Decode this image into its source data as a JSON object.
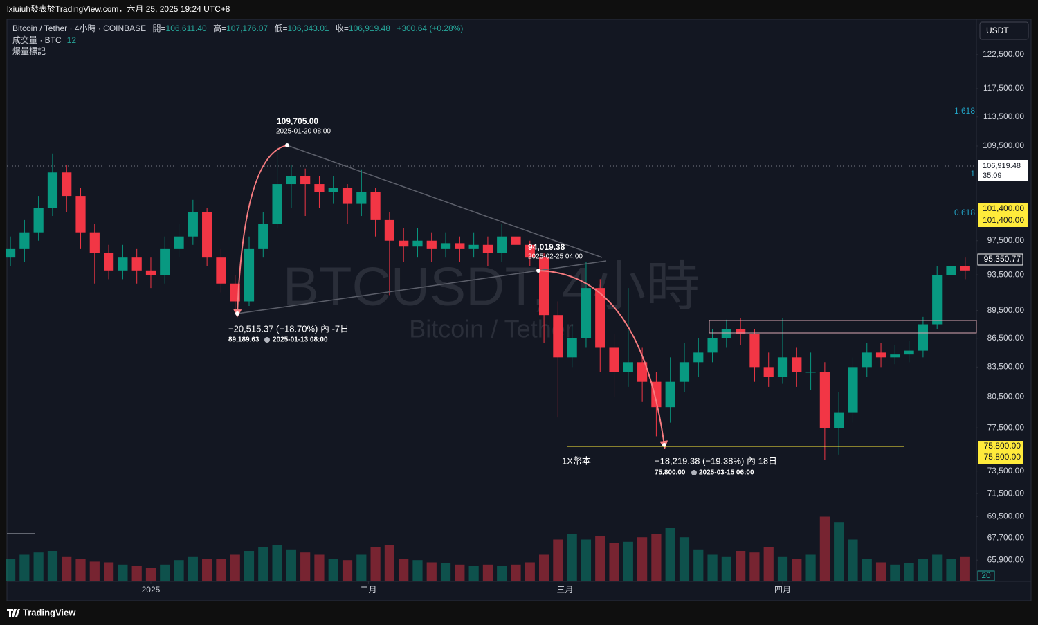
{
  "header": {
    "title": "lxiuiuh發表於TradingView.com，六月 25, 2025 19:24 UTC+8",
    "footer": "TradingView",
    "currency_button": "USDT"
  },
  "legend": {
    "symbol": "Bitcoin / Tether · 4小時 · COINBASE",
    "open_key": "開=",
    "open": "106,611.40",
    "high_key": "高=",
    "high": "107,176.07",
    "low_key": "低=",
    "low": "106,343.01",
    "close_key": "收=",
    "close": "106,919.48",
    "change": "+300.64 (+0.28%)",
    "volume_name": "成交量 · BTC",
    "volume_value": "12",
    "indicator": "爆量標記"
  },
  "watermark": {
    "symbol": "BTCUSDT, 4小時",
    "name": "Bitcoin / Tether"
  },
  "fib_levels": [
    "1.618",
    "1",
    "0.618"
  ],
  "price_labels": {
    "last": "106,919.48",
    "countdown": "35:09",
    "level_a": "101,400.00",
    "level_b": "101,400.00",
    "cursor": "95,350.77",
    "level_c": "75,800.00",
    "level_d": "75,800.00",
    "volume": "20"
  },
  "annotations": {
    "peak_price": "109,705.00",
    "peak_date": "2025-01-20 08:00",
    "mid_price": "94,019.38",
    "mid_date": "2025-02-25 04:00",
    "drop1": "−20,515.37 (−18.70%) 內 -7日",
    "drop1_price": "89,189.63",
    "drop1_date": "2025-01-13  08:00",
    "line_label": "1X幣本",
    "drop2": "−18,219.38 (−19.38%) 內 18日",
    "drop2_price": "75,800.00",
    "drop2_date": "2025-03-15  06:00"
  },
  "chart_data": {
    "type": "candlestick",
    "log_scale": true,
    "grid": false,
    "up_color": "#089981",
    "down_color": "#f23645",
    "xlim": [
      -20.5,
      117.5
    ],
    "xticks": [
      {
        "value": 0,
        "label": "2025"
      },
      {
        "value": 31,
        "label": "二月"
      },
      {
        "value": 59,
        "label": "三月"
      },
      {
        "value": 90,
        "label": "四月"
      }
    ],
    "ylim": [
      64200,
      127900
    ],
    "yticks": [
      {
        "value": 122500,
        "label": "122,500.00"
      },
      {
        "value": 117500,
        "label": "117,500.00"
      },
      {
        "value": 113500,
        "label": "113,500.00"
      },
      {
        "value": 109500,
        "label": "109,500.00"
      },
      {
        "value": 97500,
        "label": "97,500.00"
      },
      {
        "value": 93500,
        "label": "93,500.00"
      },
      {
        "value": 89500,
        "label": "89,500.00"
      },
      {
        "value": 86500,
        "label": "86,500.00"
      },
      {
        "value": 83500,
        "label": "83,500.00"
      },
      {
        "value": 80500,
        "label": "80,500.00"
      },
      {
        "value": 77500,
        "label": "77,500.00"
      },
      {
        "value": 73500,
        "label": "73,500.00"
      },
      {
        "value": 71500,
        "label": "71,500.00"
      },
      {
        "value": 69500,
        "label": "69,500.00"
      },
      {
        "value": 67700,
        "label": "67,700.00"
      },
      {
        "value": 65900,
        "label": "65,900.00"
      }
    ],
    "vlim": [
      0,
      100
    ],
    "x": [
      -20,
      -18,
      -16,
      -14,
      -12,
      -10,
      -8,
      -6,
      -4,
      -2,
      0,
      2,
      4,
      6,
      8,
      10,
      12,
      14,
      16,
      18,
      20,
      22,
      24,
      26,
      28,
      30,
      32,
      34,
      36,
      38,
      40,
      42,
      44,
      46,
      48,
      50,
      52,
      54,
      56,
      58,
      60,
      62,
      64,
      66,
      68,
      70,
      72,
      74,
      76,
      78,
      80,
      82,
      84,
      86,
      88,
      90,
      92,
      94,
      96,
      98,
      100,
      102,
      104,
      106,
      108,
      110,
      112,
      114,
      116
    ],
    "open": [
      95500,
      96500,
      98500,
      101500,
      106000,
      103000,
      98500,
      96000,
      94000,
      95500,
      94000,
      93500,
      96500,
      98000,
      101000,
      95500,
      92500,
      90500,
      96500,
      99500,
      104500,
      105500,
      104500,
      103500,
      104000,
      102000,
      103500,
      100000,
      97500,
      96800,
      97500,
      96500,
      97200,
      96500,
      97000,
      96000,
      98000,
      97000,
      95500,
      89000,
      84500,
      86500,
      92000,
      85500,
      83000,
      84000,
      82000,
      79500,
      82000,
      84000,
      85000,
      86500,
      87500,
      87000,
      83500,
      82500,
      84500,
      83000,
      83000,
      77500,
      79000,
      83500,
      85000,
      84500,
      84800,
      85200,
      88000,
      93500,
      94500
    ],
    "high": [
      98000,
      100000,
      103000,
      108500,
      107000,
      104000,
      99500,
      97000,
      97000,
      96500,
      95500,
      98000,
      99500,
      102500,
      101500,
      96500,
      93500,
      98000,
      101000,
      109705,
      107000,
      106500,
      105500,
      105500,
      104500,
      106400,
      104000,
      101000,
      99000,
      99000,
      98500,
      98500,
      98000,
      98500,
      98000,
      99500,
      100500,
      97500,
      96000,
      90500,
      88000,
      95000,
      93000,
      87000,
      92000,
      85500,
      83000,
      84500,
      86000,
      86500,
      87500,
      88500,
      88700,
      87500,
      85000,
      88700,
      85500,
      85000,
      84000,
      81000,
      84500,
      86000,
      86000,
      85800,
      86200,
      88800,
      94500,
      95800,
      95500
    ],
    "low": [
      94500,
      95000,
      97500,
      100500,
      101000,
      96500,
      92500,
      93000,
      93000,
      92500,
      92000,
      92500,
      95500,
      97000,
      94500,
      91500,
      89189.63,
      90000,
      95500,
      99000,
      101500,
      100500,
      101500,
      102000,
      99500,
      100500,
      98000,
      91200,
      95000,
      95500,
      95000,
      95500,
      95000,
      95500,
      94500,
      95000,
      96000,
      94500,
      86000,
      78500,
      83500,
      85500,
      83000,
      80500,
      81500,
      80000,
      76700,
      78000,
      81000,
      82500,
      84000,
      85500,
      85800,
      82000,
      81500,
      81800,
      81500,
      81200,
      74500,
      75000,
      78000,
      82500,
      83500,
      83800,
      84000,
      84500,
      87500,
      92500,
      93000
    ],
    "close": [
      96500,
      98500,
      101500,
      106000,
      103000,
      98500,
      96000,
      94000,
      95500,
      94000,
      93500,
      96500,
      98000,
      101000,
      95500,
      92500,
      90500,
      96500,
      99500,
      104500,
      105500,
      104500,
      103500,
      104000,
      102000,
      103500,
      100000,
      97500,
      96800,
      97500,
      96500,
      97200,
      96500,
      97000,
      96000,
      98000,
      97000,
      95500,
      89000,
      84500,
      86500,
      92000,
      85500,
      83000,
      84000,
      82000,
      79500,
      82000,
      84000,
      85000,
      86500,
      87500,
      87000,
      83500,
      82500,
      84500,
      83000,
      83000,
      77500,
      79000,
      83500,
      85000,
      84500,
      84800,
      85200,
      88000,
      93500,
      94500,
      94000
    ],
    "volume": [
      30,
      35,
      38,
      40,
      32,
      30,
      26,
      25,
      22,
      20,
      18,
      22,
      28,
      32,
      30,
      30,
      35,
      40,
      45,
      48,
      42,
      38,
      35,
      30,
      28,
      35,
      45,
      48,
      30,
      28,
      25,
      24,
      22,
      20,
      22,
      20,
      22,
      25,
      35,
      55,
      62,
      55,
      60,
      50,
      52,
      58,
      62,
      70,
      58,
      42,
      35,
      32,
      40,
      38,
      45,
      32,
      30,
      35,
      85,
      78,
      55,
      30,
      25,
      22,
      24,
      30,
      35,
      30,
      32
    ]
  }
}
